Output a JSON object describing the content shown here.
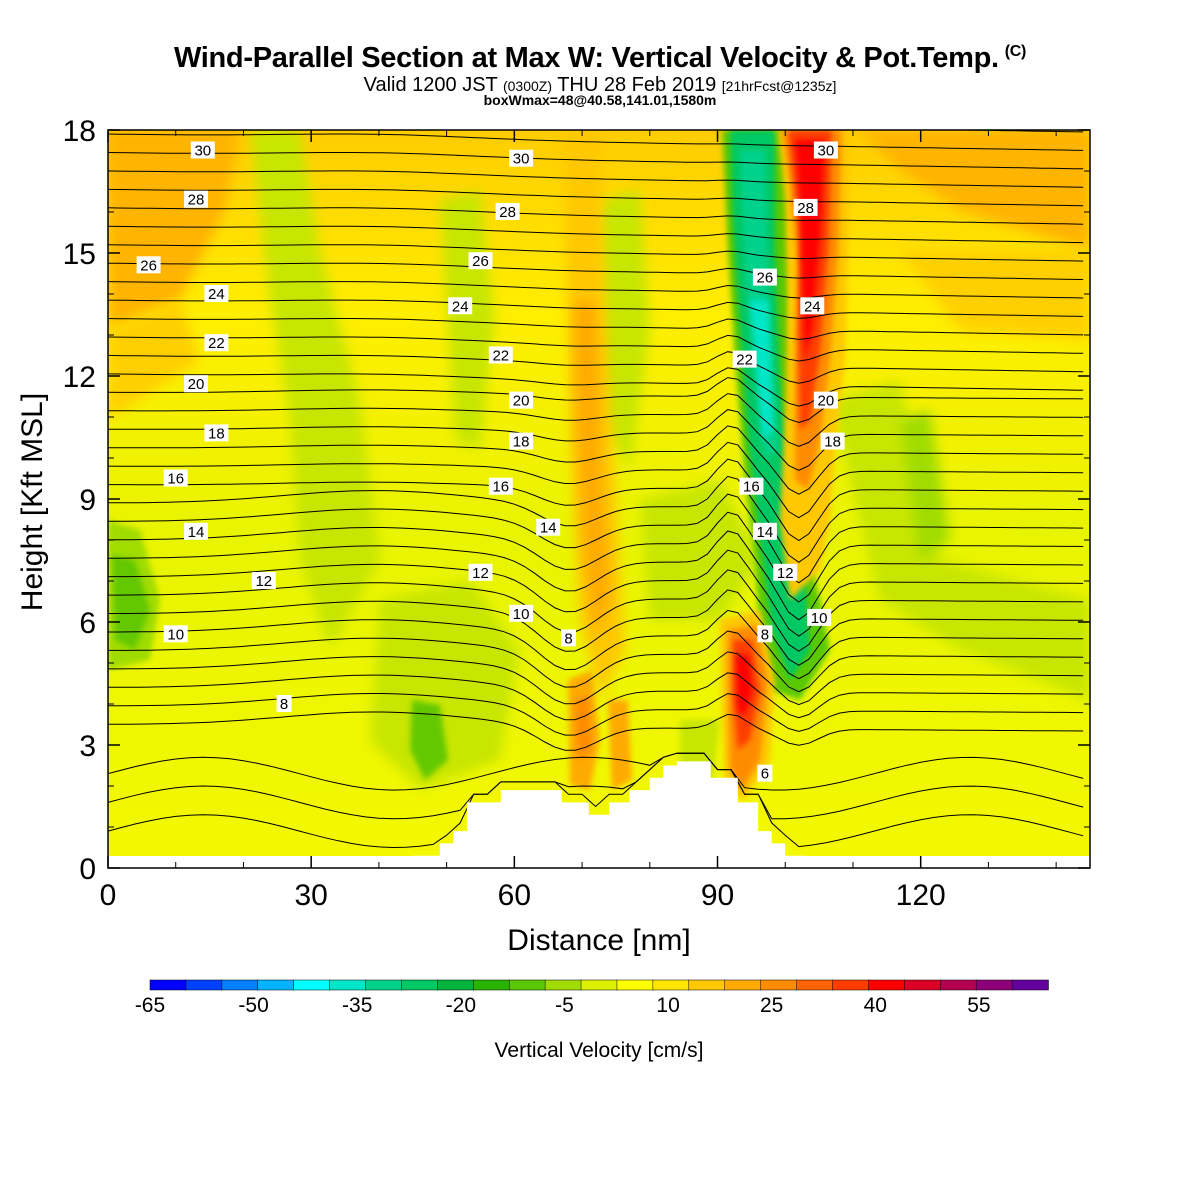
{
  "header": {
    "title": "Wind-Parallel Section at Max W: Vertical Velocity & Pot.Temp.",
    "copyright": "(C)",
    "valid_prefix": "Valid 1200 JST",
    "valid_utc": "(0300Z)",
    "valid_date": "THU 28 Feb 2019",
    "forecast_info": "[21hrFcst@1235z]",
    "box_info": "boxWmax=48@40.58,141.01,1580m"
  },
  "chart_data": {
    "type": "heatmap",
    "xlabel": "Distance [nm]",
    "ylabel": "Height [Kft MSL]",
    "xlim": [
      0,
      145
    ],
    "ylim": [
      0,
      18
    ],
    "x_ticks": [
      0,
      30,
      60,
      90,
      120
    ],
    "y_ticks": [
      0,
      3,
      6,
      9,
      12,
      15,
      18
    ],
    "colorbar": {
      "label": "Vertical Velocity [cm/s]",
      "ticks": [
        -65,
        -50,
        -35,
        -20,
        -5,
        10,
        25,
        40,
        55
      ],
      "min": -65,
      "max": 65,
      "colors": [
        "#0000ff",
        "#0040ff",
        "#0080ff",
        "#00b4ff",
        "#00ffff",
        "#00e6c8",
        "#00d28c",
        "#00c864",
        "#00b43c",
        "#28b400",
        "#5ac800",
        "#a0dc00",
        "#dcf000",
        "#ffff00",
        "#ffe600",
        "#ffc800",
        "#ffaa00",
        "#ff8c00",
        "#ff6400",
        "#ff3c00",
        "#ff0000",
        "#dc0028",
        "#b40050",
        "#8c0078",
        "#64009c"
      ]
    },
    "terrain": {
      "distance": [
        0,
        45,
        45,
        49,
        49,
        51,
        51,
        53,
        53,
        58,
        58,
        67,
        67,
        71,
        71,
        74,
        74,
        77,
        77,
        80,
        80,
        82,
        82,
        84,
        84,
        89,
        89,
        93,
        93,
        96,
        96,
        98,
        98,
        100,
        100,
        103,
        103,
        145
      ],
      "height_kft": [
        0,
        0,
        0.3,
        0.3,
        0.6,
        0.6,
        0.9,
        0.9,
        1.6,
        1.6,
        1.9,
        1.9,
        1.6,
        1.6,
        1.3,
        1.3,
        1.6,
        1.6,
        1.9,
        1.9,
        2.2,
        2.2,
        2.5,
        2.5,
        2.6,
        2.6,
        2.2,
        2.2,
        1.6,
        1.6,
        0.9,
        0.9,
        0.6,
        0.6,
        0.3,
        0.3,
        0,
        0
      ]
    },
    "updraft_core": {
      "description_value_cm_s": 48,
      "base_distance_nm": 94,
      "base_height_kft": 4,
      "top_distance_nm": 103,
      "top_height_kft": 18
    },
    "downdraft_core": {
      "value_cm_s": -35,
      "base_distance_nm": 100,
      "base_height_kft": 5,
      "top_distance_nm": 93,
      "top_height_kft": 18
    },
    "isentrope_labels": [
      {
        "text": "30",
        "x": 14,
        "y": 17.5
      },
      {
        "text": "28",
        "x": 13,
        "y": 16.3
      },
      {
        "text": "26",
        "x": 6,
        "y": 14.7
      },
      {
        "text": "24",
        "x": 16,
        "y": 14.0
      },
      {
        "text": "22",
        "x": 16,
        "y": 12.8
      },
      {
        "text": "20",
        "x": 13,
        "y": 11.8
      },
      {
        "text": "18",
        "x": 16,
        "y": 10.6
      },
      {
        "text": "16",
        "x": 10,
        "y": 9.5
      },
      {
        "text": "14",
        "x": 13,
        "y": 8.2
      },
      {
        "text": "12",
        "x": 23,
        "y": 7.0
      },
      {
        "text": "10",
        "x": 10,
        "y": 5.7
      },
      {
        "text": "8",
        "x": 26,
        "y": 4.0
      },
      {
        "text": "30",
        "x": 61,
        "y": 17.3
      },
      {
        "text": "28",
        "x": 59,
        "y": 16.0
      },
      {
        "text": "26",
        "x": 55,
        "y": 14.8
      },
      {
        "text": "24",
        "x": 52,
        "y": 13.7
      },
      {
        "text": "22",
        "x": 58,
        "y": 12.5
      },
      {
        "text": "20",
        "x": 61,
        "y": 11.4
      },
      {
        "text": "18",
        "x": 61,
        "y": 10.4
      },
      {
        "text": "16",
        "x": 58,
        "y": 9.3
      },
      {
        "text": "14",
        "x": 65,
        "y": 8.3
      },
      {
        "text": "12",
        "x": 55,
        "y": 7.2
      },
      {
        "text": "10",
        "x": 61,
        "y": 6.2
      },
      {
        "text": "8",
        "x": 68,
        "y": 5.6
      },
      {
        "text": "30",
        "x": 106,
        "y": 17.5
      },
      {
        "text": "28",
        "x": 103,
        "y": 16.1
      },
      {
        "text": "26",
        "x": 97,
        "y": 14.4
      },
      {
        "text": "24",
        "x": 104,
        "y": 13.7
      },
      {
        "text": "22",
        "x": 94,
        "y": 12.4
      },
      {
        "text": "20",
        "x": 106,
        "y": 11.4
      },
      {
        "text": "18",
        "x": 107,
        "y": 10.4
      },
      {
        "text": "16",
        "x": 95,
        "y": 9.3
      },
      {
        "text": "14",
        "x": 97,
        "y": 8.2
      },
      {
        "text": "12",
        "x": 100,
        "y": 7.2
      },
      {
        "text": "10",
        "x": 105,
        "y": 6.1
      },
      {
        "text": "8",
        "x": 97,
        "y": 5.7
      },
      {
        "text": "6",
        "x": 97,
        "y": 2.3
      }
    ]
  }
}
